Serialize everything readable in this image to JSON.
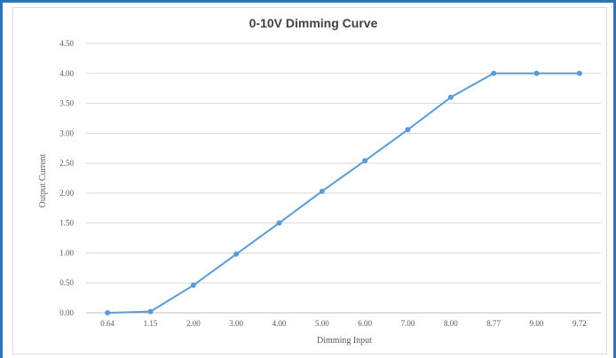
{
  "colors": {
    "frame": "#2e75b6",
    "series": "#5b9bd5",
    "grid": "#d9d9d9",
    "text": "#595959"
  },
  "chart_data": {
    "type": "line",
    "title": "0-10V Dimming Curve",
    "xlabel": "Dimming Input",
    "ylabel": "Output Current",
    "categories": [
      "0.64",
      "1.15",
      "2.00",
      "3.00",
      "4.00",
      "5.00",
      "6.00",
      "7.00",
      "8.00",
      "8.77",
      "9.00",
      "9.72"
    ],
    "yticks": [
      "0.00",
      "0.50",
      "1.00",
      "1.50",
      "2.00",
      "2.50",
      "3.00",
      "3.50",
      "4.00",
      "4.50"
    ],
    "ylim": [
      0,
      4.5
    ],
    "grid": true,
    "legend": "none",
    "series": [
      {
        "values": [
          0.0,
          0.02,
          0.46,
          0.98,
          1.5,
          2.03,
          2.54,
          3.06,
          3.6,
          4.0,
          4.0,
          4.0
        ]
      }
    ]
  }
}
